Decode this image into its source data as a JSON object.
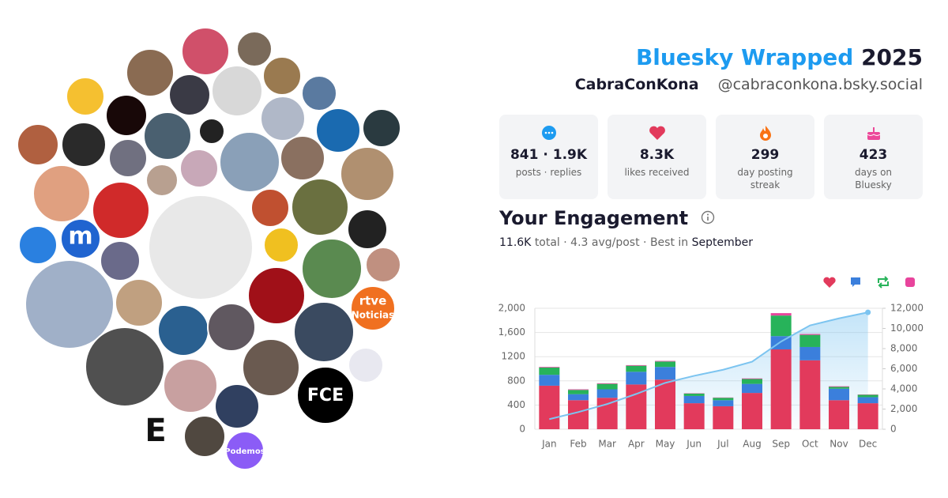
{
  "header": {
    "title": "Bluesky Wrapped",
    "year": "2025",
    "name": "CabraConKona",
    "handle": "@cabraconkona.bsky.social"
  },
  "stats": [
    {
      "value": "841 · 1.9K",
      "label": "posts · replies"
    },
    {
      "value": "8.3K",
      "label": "likes received"
    },
    {
      "value": "299",
      "label": "day posting streak"
    },
    {
      "value": "423",
      "label": "days on Bluesky"
    }
  ],
  "engagement": {
    "title": "Your Engagement",
    "total": "11.6K",
    "middle": "total · 4.3 avg/post · Best in",
    "best": "September"
  },
  "avatar_labels": [
    "rtve",
    "Noticias",
    "Podemos",
    "FCE",
    "E",
    "m"
  ],
  "chart_data": {
    "type": "stacked-bar-line",
    "categories": [
      "Jan",
      "Feb",
      "Mar",
      "Apr",
      "May",
      "Jun",
      "Jul",
      "Aug",
      "Sep",
      "Oct",
      "Nov",
      "Dec"
    ],
    "series": [
      {
        "color": "#e23a5c",
        "values": [
          720,
          480,
          520,
          740,
          820,
          430,
          380,
          600,
          1320,
          1140,
          480,
          430
        ]
      },
      {
        "color": "#3b7fdc",
        "values": [
          180,
          100,
          140,
          210,
          210,
          120,
          100,
          150,
          220,
          220,
          190,
          100
        ]
      },
      {
        "color": "#27b35a",
        "values": [
          120,
          70,
          90,
          100,
          90,
          40,
          40,
          80,
          340,
          200,
          30,
          40
        ]
      },
      {
        "color": "#e8449c",
        "values": [
          10,
          10,
          10,
          10,
          10,
          5,
          5,
          10,
          40,
          15,
          10,
          5
        ]
      },
      {
        "color": "#7cc4f0",
        "axis": "y2",
        "values": [
          1000,
          1700,
          2500,
          3500,
          4600,
          5300,
          5900,
          6700,
          8700,
          10300,
          11000,
          11600
        ]
      }
    ],
    "ylim": [
      0,
      2000
    ],
    "yticks": [
      0,
      400,
      800,
      1200,
      {
        "value": 1600,
        "label": "1,600"
      },
      {
        "value": 2000,
        "label": "2,000"
      }
    ],
    "y2lim": [
      0,
      12000
    ],
    "y2ticks": [
      0,
      {
        "value": 2000,
        "label": "2,000"
      },
      {
        "value": 4000,
        "label": "4,000"
      },
      {
        "value": 6000,
        "label": "6,000"
      },
      {
        "value": 8000,
        "label": "8,000"
      },
      {
        "value": 10000,
        "label": "10,000"
      },
      {
        "value": 12000,
        "label": "12,000"
      }
    ],
    "grid": true
  }
}
